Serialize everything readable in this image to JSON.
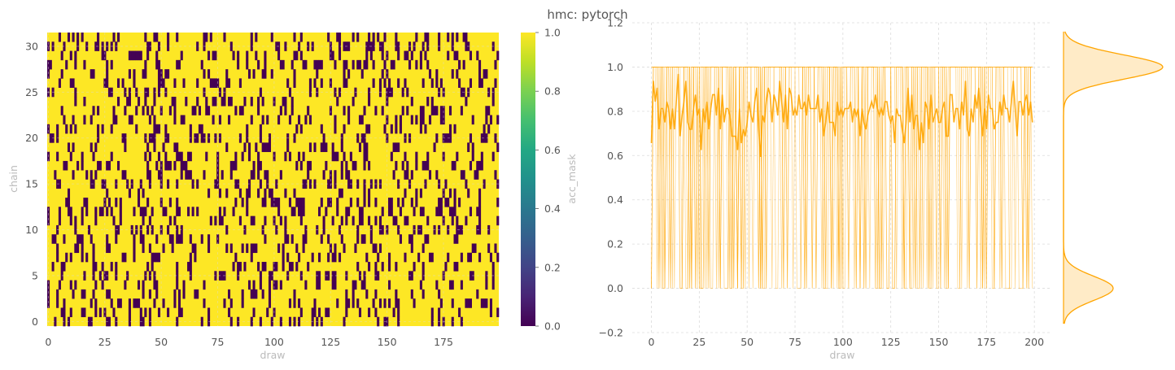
{
  "title": "hmc: pytorch",
  "colors": {
    "accept": "#fde725",
    "reject": "#440154",
    "trace": "#ffa500",
    "grid": "#dcdcdc",
    "text": "#555555",
    "label": "#bbbbbb"
  },
  "chart_data": [
    {
      "type": "heatmap",
      "xlabel": "draw",
      "ylabel": "chain",
      "colorbar_label": "acc_mask",
      "x_ticks": [
        "0",
        "25",
        "50",
        "75",
        "100",
        "125",
        "150",
        "175"
      ],
      "y_ticks": [
        "0",
        "5",
        "10",
        "15",
        "20",
        "25",
        "30"
      ],
      "colorbar_ticks": [
        "0.0",
        "0.2",
        "0.4",
        "0.6",
        "0.8",
        "1.0"
      ],
      "n_draws": 200,
      "n_chains": 32,
      "acceptance_rate": 0.8,
      "xlim": [
        0,
        200
      ],
      "ylim": [
        0,
        32
      ],
      "clim": [
        0.0,
        1.0
      ],
      "colormap": "viridis"
    },
    {
      "type": "line",
      "xlabel": "draw",
      "ylabel": "",
      "x_ticks": [
        "0",
        "25",
        "50",
        "75",
        "100",
        "125",
        "150",
        "175",
        "200"
      ],
      "y_ticks": [
        "−0.2",
        "0.0",
        "0.2",
        "0.4",
        "0.6",
        "0.8",
        "1.0",
        "1.2"
      ],
      "xlim": [
        -10,
        208
      ],
      "ylim": [
        -0.2,
        1.2
      ],
      "n_draws": 200,
      "n_chains": 32,
      "values_per_draw": [
        0,
        1
      ],
      "mean_per_draw_approx": 0.8,
      "grid": true
    },
    {
      "type": "area",
      "orientation": "vertical",
      "description_key": "marginal density of acc_mask",
      "peaks": [
        {
          "value": 1.0,
          "relative_density": 1.0
        },
        {
          "value": 0.0,
          "relative_density": 0.5
        }
      ]
    }
  ]
}
